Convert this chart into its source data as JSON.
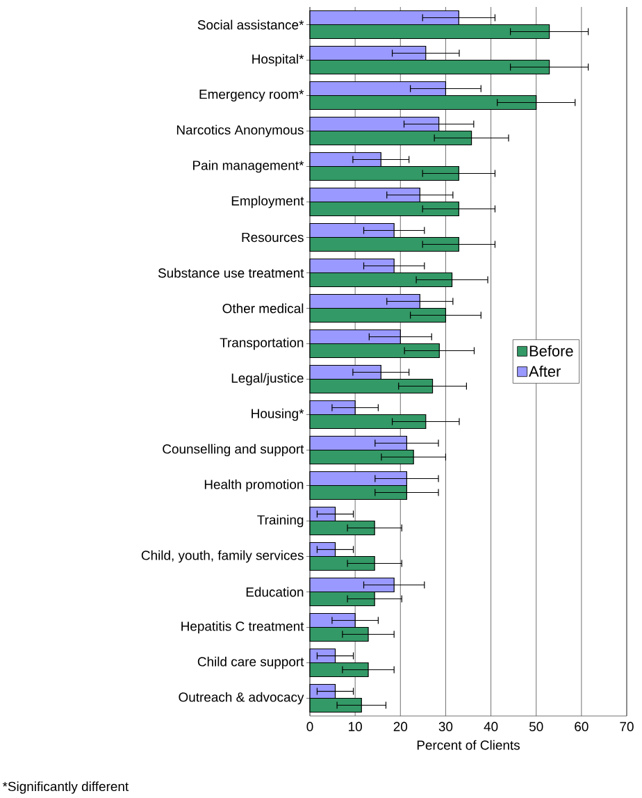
{
  "chart_data": {
    "type": "bar",
    "orientation": "horizontal",
    "xlabel": "Percent of Clients",
    "categories": [
      "Social assistance*",
      "Hospital*",
      "Emergency room*",
      "Narcotics Anonymous",
      "Pain management*",
      "Employment",
      "Resources",
      "Substance use treatment",
      "Other medical",
      "Transportation",
      "Legal/justice",
      "Housing*",
      "Counselling and support",
      "Health promotion",
      "Training",
      "Child, youth, family services",
      "Education",
      "Hepatitis C treatment",
      "Child care support",
      "Outreach & advocacy"
    ],
    "series": [
      {
        "name": "Before",
        "color": "#339966",
        "values": [
          52.9,
          52.9,
          50,
          35.7,
          32.9,
          32.9,
          32.9,
          31.4,
          30,
          28.6,
          27.1,
          25.6,
          22.9,
          21.4,
          14.3,
          14.3,
          14.3,
          12.9,
          12.9,
          11.4
        ],
        "errors": [
          8.6,
          8.6,
          8.6,
          8.2,
          8,
          8,
          8,
          7.9,
          7.8,
          7.7,
          7.5,
          7.4,
          7.1,
          7,
          6,
          6,
          6,
          5.7,
          5.7,
          5.4
        ]
      },
      {
        "name": "After",
        "color": "#9999ff",
        "values": [
          32.9,
          25.6,
          30,
          28.5,
          15.7,
          24.3,
          18.6,
          18.6,
          24.3,
          20,
          15.7,
          10,
          21.4,
          21.4,
          5.6,
          5.6,
          18.6,
          10,
          5.6,
          5.6
        ],
        "errors": [
          8,
          7.4,
          7.8,
          7.7,
          6.2,
          7.3,
          6.7,
          6.7,
          7.3,
          6.9,
          6.2,
          5.1,
          7,
          7,
          4,
          4,
          6.7,
          5.1,
          4,
          4
        ]
      }
    ],
    "xlim": [
      0,
      70
    ],
    "xticks": [
      0,
      10,
      20,
      30,
      40,
      50,
      60,
      70
    ],
    "grid": "x",
    "legend": "right",
    "annotations": [
      "*Significantly different"
    ]
  }
}
